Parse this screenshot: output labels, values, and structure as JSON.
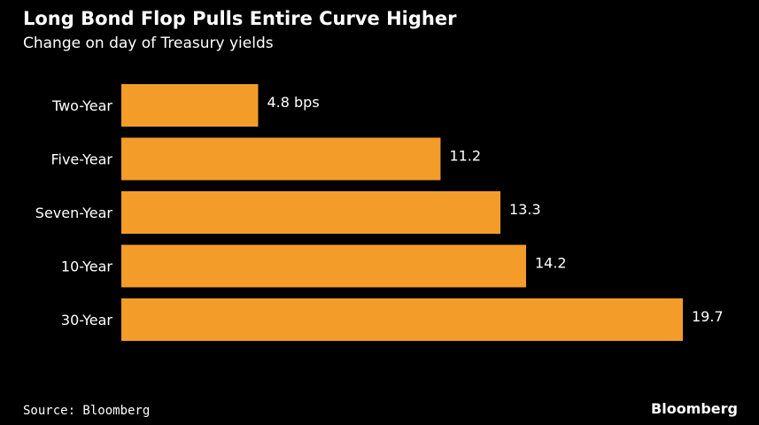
{
  "chart_data": {
    "type": "bar",
    "orientation": "horizontal",
    "title": "Long Bond Flop Pulls Entire Curve Higher",
    "subtitle": "Change on day of Treasury yields",
    "categories": [
      "Two-Year",
      "Five-Year",
      "Seven-Year",
      "10-Year",
      "30-Year"
    ],
    "values": [
      4.8,
      11.2,
      13.3,
      14.2,
      19.7
    ],
    "value_labels": [
      "4.8 bps",
      "11.2",
      "13.3",
      "14.2",
      "19.7"
    ],
    "unit": "bps",
    "xlim": [
      0,
      19.7
    ],
    "grid": false,
    "bar_color": "#f39c2a"
  },
  "footer": {
    "source": "Source: Bloomberg",
    "logo": "Bloomberg"
  }
}
